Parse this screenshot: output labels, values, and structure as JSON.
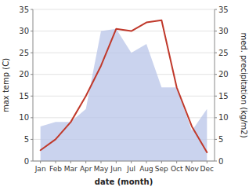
{
  "chart_data": {
    "type": "line",
    "categories": [
      "Jan",
      "Feb",
      "Mar",
      "Apr",
      "May",
      "Jun",
      "Jul",
      "Aug",
      "Sep",
      "Oct",
      "Nov",
      "Dec"
    ],
    "series": [
      {
        "type": "line",
        "color": "#c0392b",
        "values": [
          2.5,
          5.0,
          9.0,
          15.0,
          22.0,
          30.5,
          30.0,
          32.0,
          32.5,
          17.0,
          8.0,
          2.0
        ]
      },
      {
        "type": "area",
        "color": "#b8c4e8",
        "axis": "y2",
        "values": [
          8.0,
          9.0,
          9.0,
          12.0,
          30.0,
          30.5,
          25.0,
          27.0,
          17.0,
          17.0,
          7.0,
          12.0
        ]
      }
    ],
    "xlabel": "date (month)",
    "ylabel": "max temp (C)",
    "y2label": "med. precipitation (kg/m2)",
    "ylim": [
      0,
      35
    ],
    "yticks": [
      0,
      5,
      10,
      15,
      20,
      25,
      30,
      35
    ],
    "y2lim": [
      0,
      35
    ],
    "y2ticks": [
      0,
      5,
      10,
      15,
      20,
      25,
      30,
      35
    ],
    "grid": true
  }
}
